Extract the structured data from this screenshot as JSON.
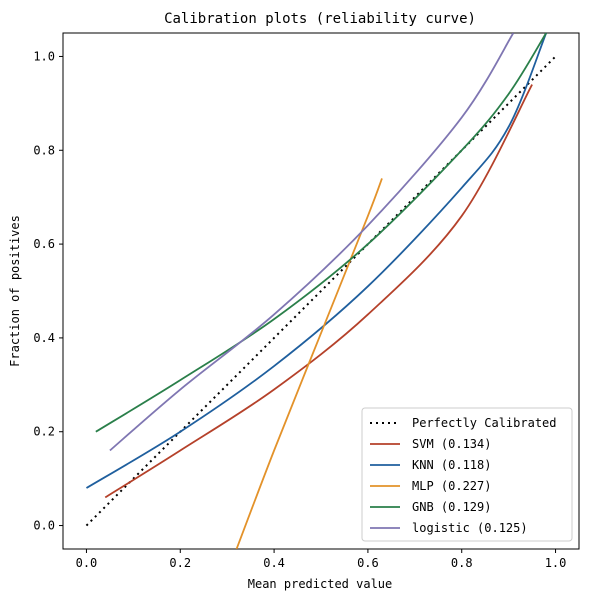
{
  "chart_data": {
    "type": "line",
    "title": "Calibration plots  (reliability curve)",
    "xlabel": "Mean predicted value",
    "ylabel": "Fraction of positives",
    "xlim": [
      -0.05,
      1.05
    ],
    "ylim": [
      -0.05,
      1.05
    ],
    "xticks": [
      0.0,
      0.2,
      0.4,
      0.6,
      0.8,
      1.0
    ],
    "xtick_labels": [
      "0.0",
      "0.2",
      "0.4",
      "0.6",
      "0.8",
      "1.0"
    ],
    "yticks": [
      0.0,
      0.2,
      0.4,
      0.6,
      0.8,
      1.0
    ],
    "ytick_labels": [
      "0.0",
      "0.2",
      "0.4",
      "0.6",
      "0.8",
      "1.0"
    ],
    "grid": false,
    "legend_position": "lower-right",
    "series": [
      {
        "name": "Perfectly Calibrated",
        "label": "Perfectly Calibrated",
        "color": "#000000",
        "style": "dotted",
        "x": [
          0.0,
          1.0
        ],
        "y": [
          0.0,
          1.0
        ]
      },
      {
        "name": "SVM",
        "label": "SVM (0.134)",
        "color": "#b5412a",
        "style": "solid",
        "x": [
          0.04,
          0.2,
          0.4,
          0.6,
          0.8,
          0.95
        ],
        "y": [
          0.06,
          0.16,
          0.29,
          0.45,
          0.66,
          0.94
        ]
      },
      {
        "name": "KNN",
        "label": "KNN (0.118)",
        "color": "#1f5f9e",
        "style": "solid",
        "x": [
          0.0,
          0.2,
          0.4,
          0.6,
          0.8,
          0.9,
          0.98
        ],
        "y": [
          0.08,
          0.2,
          0.34,
          0.51,
          0.72,
          0.85,
          1.05
        ]
      },
      {
        "name": "MLP",
        "label": "MLP (0.227)",
        "color": "#e3922a",
        "style": "solid",
        "x": [
          0.32,
          0.4,
          0.5,
          0.6,
          0.63
        ],
        "y": [
          -0.05,
          0.16,
          0.41,
          0.66,
          0.74
        ]
      },
      {
        "name": "GNB",
        "label": "GNB (0.129)",
        "color": "#2a7f4a",
        "style": "solid",
        "x": [
          0.02,
          0.2,
          0.4,
          0.6,
          0.8,
          0.9,
          0.98
        ],
        "y": [
          0.2,
          0.31,
          0.44,
          0.6,
          0.8,
          0.92,
          1.05
        ]
      },
      {
        "name": "logistic",
        "label": "logistic (0.125)",
        "color": "#7f76b2",
        "style": "solid",
        "x": [
          0.05,
          0.2,
          0.4,
          0.6,
          0.8,
          0.91
        ],
        "y": [
          0.16,
          0.29,
          0.45,
          0.64,
          0.87,
          1.05
        ]
      }
    ]
  }
}
